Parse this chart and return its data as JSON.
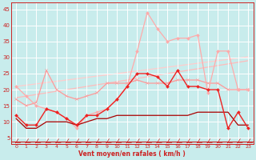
{
  "bg_color": "#c8ecec",
  "grid_color": "#ffffff",
  "xlabel": "Vent moyen/en rafales ( km/h )",
  "xmin": -0.5,
  "xmax": 23.5,
  "ymin": 3,
  "ymax": 47,
  "yticks": [
    5,
    10,
    15,
    20,
    25,
    30,
    35,
    40,
    45
  ],
  "xticks": [
    0,
    1,
    2,
    3,
    4,
    5,
    6,
    7,
    8,
    9,
    10,
    11,
    12,
    13,
    14,
    15,
    16,
    17,
    18,
    19,
    20,
    21,
    22,
    23
  ],
  "lines": [
    {
      "y": [
        21.0,
        21.4,
        21.8,
        22.2,
        22.6,
        23.0,
        23.4,
        23.8,
        24.2,
        24.6,
        25.0,
        25.4,
        25.8,
        26.2,
        26.6,
        27.0,
        27.4,
        27.8,
        28.2,
        28.6,
        29.0,
        29.4,
        29.8,
        30.2
      ],
      "color": "#ffcccc",
      "lw": 0.9,
      "marker": null,
      "ms": 0,
      "zorder": 1
    },
    {
      "y": [
        17.5,
        18.0,
        18.5,
        19.0,
        19.5,
        20.0,
        20.5,
        21.0,
        21.5,
        22.0,
        22.5,
        23.0,
        23.5,
        24.0,
        24.5,
        25.0,
        25.5,
        26.0,
        26.5,
        27.0,
        27.5,
        28.0,
        28.5,
        29.0
      ],
      "color": "#ffbbbb",
      "lw": 0.9,
      "marker": null,
      "ms": 0,
      "zorder": 1
    },
    {
      "y": [
        17,
        15,
        16,
        26,
        20,
        18,
        17,
        18,
        19,
        22,
        22,
        22,
        23,
        22,
        22,
        22,
        23,
        23,
        23,
        22,
        22,
        20,
        20,
        20
      ],
      "color": "#ff9999",
      "lw": 0.9,
      "marker": "x",
      "ms": 3.0,
      "zorder": 2
    },
    {
      "y": [
        21,
        18,
        15,
        14,
        13,
        11,
        8,
        12,
        13,
        14,
        17,
        21,
        32,
        44,
        39,
        35,
        36,
        36,
        37,
        19,
        32,
        32,
        20,
        20
      ],
      "color": "#ffaaaa",
      "lw": 0.9,
      "marker": "D",
      "ms": 2.0,
      "zorder": 3
    },
    {
      "y": [
        12,
        9,
        9,
        14,
        13,
        11,
        9,
        12,
        12,
        14,
        17,
        21,
        25,
        25,
        24,
        21,
        26,
        21,
        21,
        20,
        20,
        8,
        13,
        8
      ],
      "color": "#ee2222",
      "lw": 1.0,
      "marker": "D",
      "ms": 2.0,
      "zorder": 4
    },
    {
      "y": [
        11,
        8,
        8,
        10,
        10,
        10,
        9,
        10,
        11,
        11,
        12,
        12,
        12,
        12,
        12,
        12,
        12,
        12,
        13,
        13,
        13,
        13,
        9,
        9
      ],
      "color": "#aa0000",
      "lw": 0.9,
      "marker": null,
      "ms": 0,
      "zorder": 3
    }
  ],
  "arrow_color": "#cc2222",
  "hline_y": 3.8,
  "hline_color": "#cc2222"
}
